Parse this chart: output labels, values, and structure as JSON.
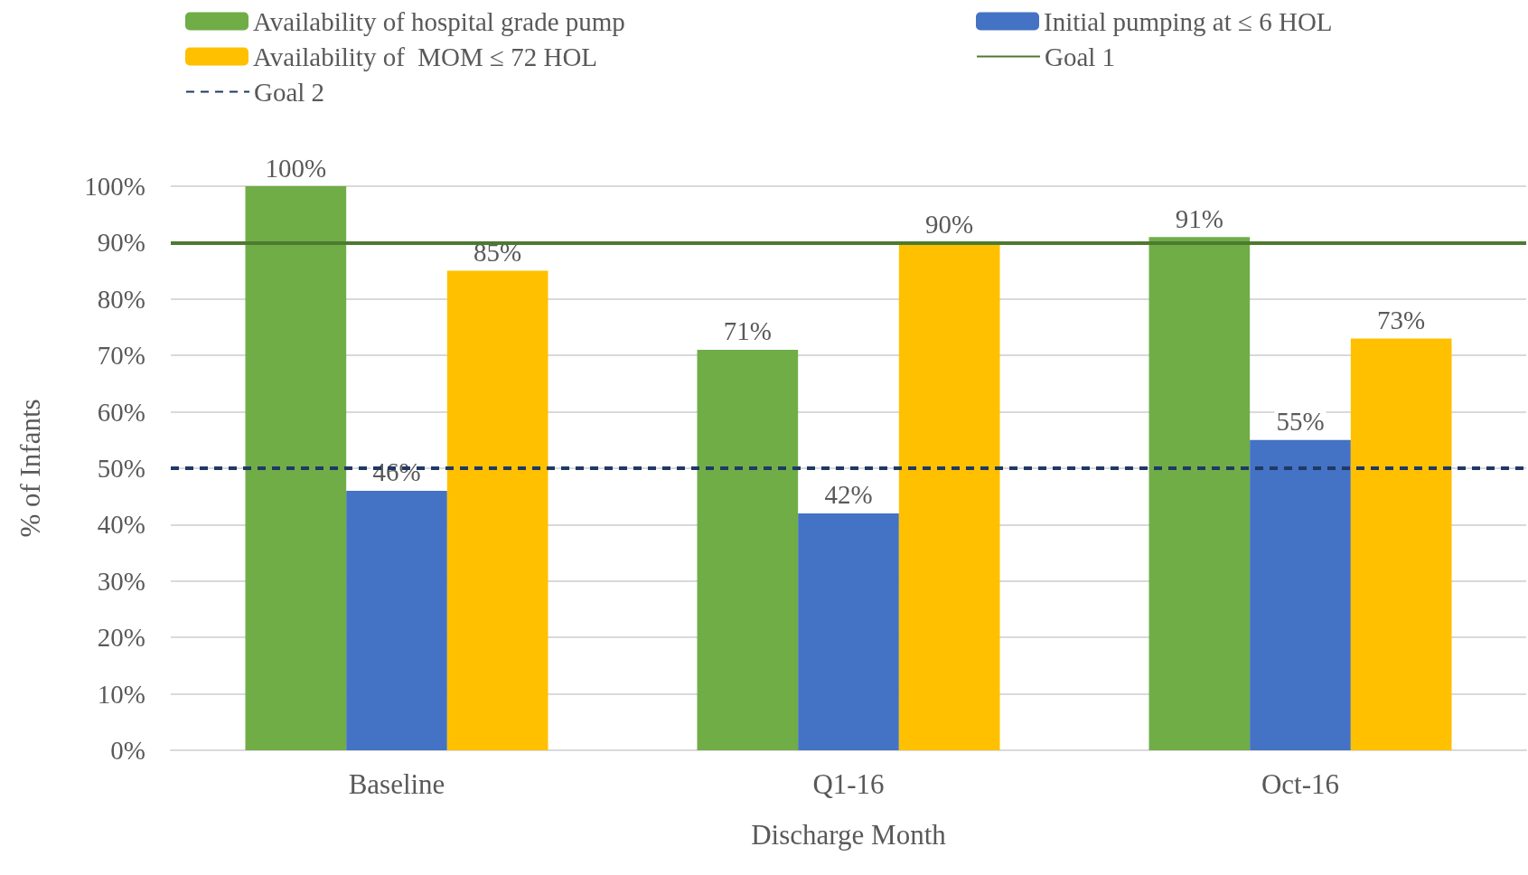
{
  "chart_data": {
    "type": "bar",
    "xlabel": "Discharge Month",
    "ylabel": "% of Infants",
    "categories": [
      "Baseline",
      "Q1-16",
      "Oct-16"
    ],
    "series": [
      {
        "name": "Availability of hospital grade pump",
        "color": "#70ad47",
        "values": [
          100,
          71,
          91
        ],
        "value_labels": [
          "100%",
          "71%",
          "91%"
        ]
      },
      {
        "name": "Initial pumping at ≤ 6 HOL",
        "color": "#4472c4",
        "values": [
          46,
          42,
          55
        ],
        "value_labels": [
          "46%",
          "42%",
          "55%"
        ]
      },
      {
        "name": "Availability of  MOM ≤ 72 HOL",
        "color": "#ffc000",
        "values": [
          85,
          90,
          73
        ],
        "value_labels": [
          "85%",
          "90%",
          "73%"
        ]
      }
    ],
    "ref_lines": [
      {
        "axis": "y",
        "value": 90,
        "label": "Goal 1",
        "color": "#4e7a2f",
        "line_style": "solid"
      },
      {
        "axis": "y",
        "value": 50,
        "label": "Goal 2",
        "color": "#1f3864",
        "line_style": "dashed"
      }
    ],
    "ylim": [
      0,
      100
    ],
    "yticks": [
      {
        "value": 0,
        "label": "0%"
      },
      {
        "value": 10,
        "label": "10%"
      },
      {
        "value": 20,
        "label": "20%"
      },
      {
        "value": 30,
        "label": "30%"
      },
      {
        "value": 40,
        "label": "40%"
      },
      {
        "value": 50,
        "label": "50%"
      },
      {
        "value": 60,
        "label": "60%"
      },
      {
        "value": 70,
        "label": "70%"
      },
      {
        "value": 80,
        "label": "80%"
      },
      {
        "value": 90,
        "label": "90%"
      },
      {
        "value": 100,
        "label": "100%"
      }
    ],
    "grid": "y",
    "legend": "top"
  }
}
